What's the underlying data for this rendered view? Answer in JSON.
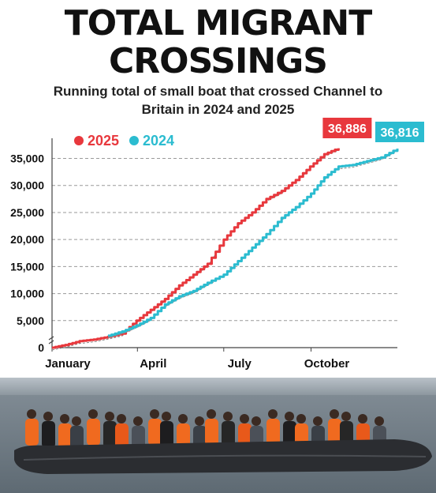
{
  "headline": {
    "line1": "TOTAL MIGRANT",
    "line2": "CROSSINGS"
  },
  "subhead": {
    "line1": "Running total of small boat that crossed Channel to",
    "line2": "Britain in 2024 and 2025"
  },
  "colors": {
    "2025": "#e8383d",
    "2024": "#2bbcd0",
    "text": "#111111",
    "grid": "#9a9a9a"
  },
  "chart_data": {
    "type": "line",
    "title": "",
    "xlabel": "",
    "ylabel": "",
    "x_unit": "day of year",
    "xlim": [
      1,
      365
    ],
    "ylim": [
      0,
      38000
    ],
    "yticks": [
      0,
      5000,
      10000,
      15000,
      20000,
      25000,
      30000,
      35000
    ],
    "ytick_labels": [
      "0",
      "5,000",
      "10,000",
      "15,000",
      "20,000",
      "25,000",
      "30,000",
      "35,000"
    ],
    "xticks": [
      {
        "label": "January",
        "x": 1
      },
      {
        "label": "April",
        "x": 91
      },
      {
        "label": "July",
        "x": 182
      },
      {
        "label": "October",
        "x": 274
      }
    ],
    "legend": {
      "placement": "top-left"
    },
    "grid": "horizontal dashed",
    "series": [
      {
        "name": "2025",
        "color": "#e8383d",
        "end_label": "36,886",
        "x": [
          1,
          15,
          30,
          45,
          60,
          75,
          90,
          105,
          120,
          135,
          150,
          165,
          182,
          197,
          212,
          227,
          243,
          258,
          273,
          288,
          303
        ],
        "y": [
          0,
          500,
          1200,
          1500,
          2000,
          2600,
          5000,
          7000,
          9000,
          11500,
          13500,
          15500,
          20000,
          23000,
          25000,
          27500,
          29000,
          31000,
          33500,
          35800,
          36886
        ]
      },
      {
        "name": "2024",
        "color": "#2bbcd0",
        "end_label": "36,816",
        "x": [
          60,
          75,
          90,
          105,
          120,
          135,
          150,
          165,
          182,
          197,
          212,
          227,
          243,
          258,
          274,
          288,
          303,
          318,
          333,
          348,
          365
        ],
        "y": [
          2200,
          3000,
          4100,
          5500,
          8000,
          9500,
          10500,
          12000,
          13500,
          16000,
          18500,
          21000,
          24000,
          26000,
          28500,
          31500,
          33500,
          33800,
          34500,
          35200,
          36816
        ]
      }
    ]
  }
}
